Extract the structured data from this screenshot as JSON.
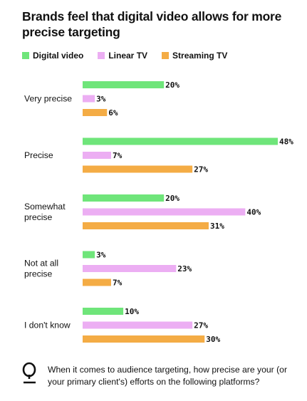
{
  "title": "Brands feel that digital video allows for more precise targeting",
  "legend": [
    {
      "label": "Digital video",
      "color": "#6fe57a"
    },
    {
      "label": "Linear TV",
      "color": "#ecaef3"
    },
    {
      "label": "Streaming TV",
      "color": "#f4ac45"
    }
  ],
  "chart_data": {
    "type": "bar",
    "orientation": "horizontal",
    "categories": [
      [
        "Very precise"
      ],
      [
        "Precise"
      ],
      [
        "Somewhat",
        "precise"
      ],
      [
        "Not at all",
        "precise"
      ],
      [
        "I don't know"
      ]
    ],
    "series": [
      {
        "name": "Digital video",
        "color": "#6fe57a",
        "values": [
          20,
          48,
          20,
          3,
          10
        ]
      },
      {
        "name": "Linear TV",
        "color": "#ecaef3",
        "values": [
          3,
          7,
          40,
          23,
          27
        ]
      },
      {
        "name": "Streaming TV",
        "color": "#f4ac45",
        "values": [
          6,
          27,
          31,
          7,
          30
        ]
      }
    ],
    "value_suffix": "%",
    "legend_position": "top-left",
    "grid": false
  },
  "footer": {
    "icon": "q-letter-icon",
    "question": "When it comes to audience targeting, how precise are your (or your primary client's) efforts on the following platforms?"
  }
}
